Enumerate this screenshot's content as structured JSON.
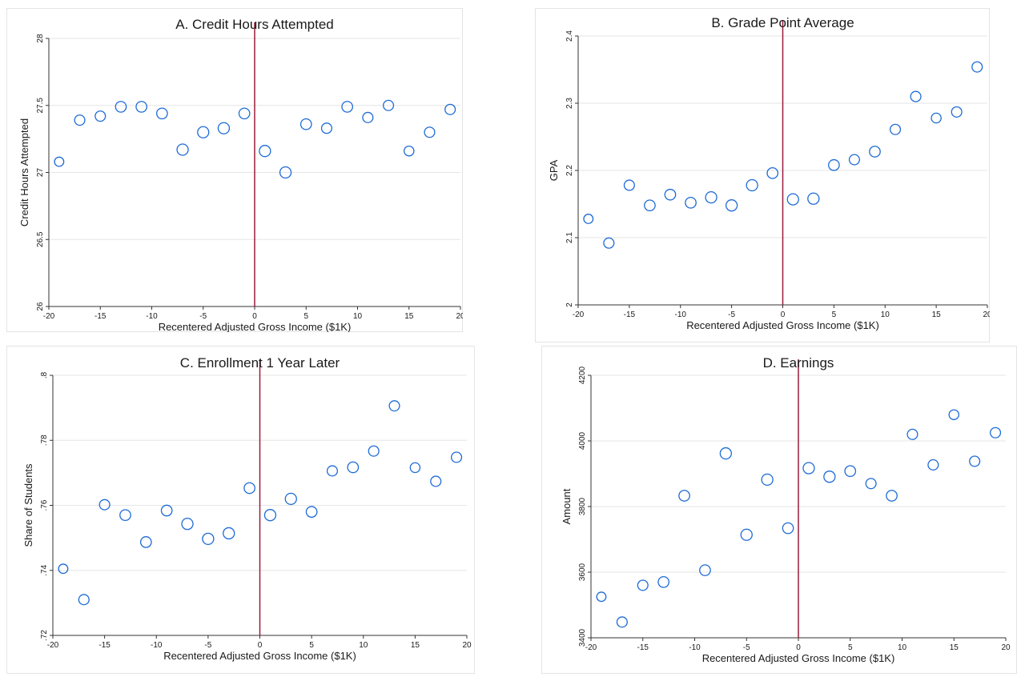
{
  "colors": {
    "marker": "#1e6bd6",
    "cutoff": "#9b1b3b",
    "grid": "#e6e6e6"
  },
  "chart_data": [
    {
      "type": "scatter",
      "title": "A. Credit Hours Attempted",
      "xlabel": "Recentered Adjusted Gross Income ($1K)",
      "ylabel": "Credit Hours Attempted",
      "xlim": [
        -20,
        20
      ],
      "ylim": [
        26,
        28
      ],
      "xticks": [
        "-20",
        "-15",
        "-10",
        "-5",
        "0",
        "5",
        "10",
        "15",
        "20"
      ],
      "yticks": [
        "26",
        "26.5",
        "27",
        "27.5",
        "28"
      ],
      "cutoff_x": 0,
      "x": [
        -19,
        -17,
        -15,
        -13,
        -11,
        -9,
        -7,
        -5,
        -3,
        -1,
        1,
        3,
        5,
        7,
        9,
        11,
        13,
        15,
        17,
        19
      ],
      "y": [
        27.08,
        27.39,
        27.42,
        27.49,
        27.49,
        27.44,
        27.17,
        27.3,
        27.33,
        27.44,
        27.16,
        27.0,
        27.36,
        27.33,
        27.49,
        27.41,
        27.5,
        27.16,
        27.3,
        27.47
      ],
      "sizes": [
        0.6,
        0.8,
        0.8,
        0.9,
        0.9,
        0.9,
        1,
        1,
        1,
        0.9,
        1,
        1,
        0.9,
        0.8,
        0.9,
        0.8,
        0.8,
        0.7,
        0.8,
        0.8
      ]
    },
    {
      "type": "scatter",
      "title": "B. Grade Point Average",
      "xlabel": "Recentered Adjusted Gross Income ($1K)",
      "ylabel": "GPA",
      "xlim": [
        -20,
        20
      ],
      "ylim": [
        2,
        2.4
      ],
      "xticks": [
        "-20",
        "-15",
        "-10",
        "-5",
        "0",
        "5",
        "10",
        "15",
        "20"
      ],
      "yticks": [
        "2",
        "2.1",
        "2.2",
        "2.3",
        "2.4"
      ],
      "cutoff_x": 0,
      "x": [
        -19,
        -17,
        -15,
        -13,
        -11,
        -9,
        -7,
        -5,
        -3,
        -1,
        1,
        3,
        5,
        7,
        9,
        11,
        13,
        15,
        17,
        19
      ],
      "y": [
        2.128,
        2.092,
        2.178,
        2.148,
        2.164,
        2.152,
        2.16,
        2.148,
        2.178,
        2.196,
        2.157,
        2.158,
        2.208,
        2.216,
        2.228,
        2.261,
        2.31,
        2.278,
        2.287,
        2.354
      ],
      "sizes": [
        0.6,
        0.8,
        0.8,
        0.9,
        0.9,
        0.9,
        1,
        1,
        1,
        0.9,
        1,
        1,
        0.9,
        0.8,
        0.9,
        0.8,
        0.8,
        0.7,
        0.8,
        0.8
      ]
    },
    {
      "type": "scatter",
      "title": "C. Enrollment 1 Year Later",
      "xlabel": "Recentered Adjusted Gross Income ($1K)",
      "ylabel": "Share of Students",
      "xlim": [
        -20,
        20
      ],
      "ylim": [
        0.72,
        0.8
      ],
      "xticks": [
        "-20",
        "-15",
        "-10",
        "-5",
        "0",
        "5",
        "10",
        "15",
        "20"
      ],
      "yticks": [
        ".72",
        ".74",
        ".76",
        ".78",
        ".8"
      ],
      "cutoff_x": 0,
      "x": [
        -19,
        -17,
        -15,
        -13,
        -11,
        -9,
        -7,
        -5,
        -3,
        -1,
        1,
        3,
        5,
        7,
        9,
        11,
        13,
        15,
        17,
        19
      ],
      "y": [
        0.7405,
        0.731,
        0.7602,
        0.757,
        0.7487,
        0.7584,
        0.7543,
        0.7497,
        0.7514,
        0.7653,
        0.757,
        0.762,
        0.758,
        0.7706,
        0.7717,
        0.7767,
        0.7906,
        0.7716,
        0.7674,
        0.7748
      ],
      "sizes": [
        0.6,
        0.8,
        0.8,
        0.9,
        0.9,
        0.9,
        1,
        1,
        1,
        0.9,
        1,
        1,
        0.9,
        0.8,
        0.9,
        0.8,
        0.8,
        0.7,
        0.8,
        0.8
      ]
    },
    {
      "type": "scatter",
      "title": "D. Earnings",
      "xlabel": "Recentered Adjusted Gross Income ($1K)",
      "ylabel": "Amount",
      "xlim": [
        -20,
        20
      ],
      "ylim": [
        3400,
        4200
      ],
      "xticks": [
        "-20",
        "-15",
        "-10",
        "-5",
        "0",
        "5",
        "10",
        "15",
        "20"
      ],
      "yticks": [
        "3400",
        "3600",
        "3800",
        "4000",
        "4200"
      ],
      "cutoff_x": 0,
      "x": [
        -19,
        -17,
        -15,
        -13,
        -11,
        -9,
        -7,
        -5,
        -3,
        -1,
        1,
        3,
        5,
        7,
        9,
        11,
        13,
        15,
        17,
        19
      ],
      "y": [
        3525,
        3448,
        3560,
        3570,
        3833,
        3606,
        3962,
        3714,
        3882,
        3734,
        3917,
        3891,
        3908,
        3870,
        3833,
        4020,
        3927,
        4080,
        3938,
        4025
      ],
      "sizes": [
        0.6,
        0.8,
        0.8,
        0.9,
        0.9,
        0.9,
        1,
        1,
        1,
        0.9,
        1,
        1,
        0.9,
        0.8,
        0.9,
        0.8,
        0.8,
        0.7,
        0.8,
        0.8
      ]
    }
  ]
}
